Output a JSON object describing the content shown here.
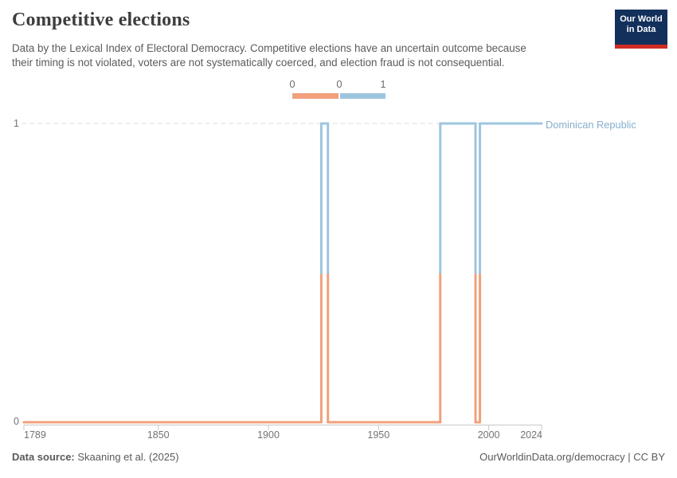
{
  "header": {
    "title": "Competitive elections",
    "subtitle_lines": [
      "Data by the Lexical Index of Electoral Democracy. Competitive elections have an uncertain outcome because",
      "their timing is not violated, voters are not systematically coerced, and election fraud is not consequential."
    ],
    "logo": {
      "line1": "Our World",
      "line2": "in Data"
    }
  },
  "legend": {
    "tick_labels": [
      "0",
      "0",
      "1"
    ],
    "bins": [
      {
        "value": "0",
        "color": "#f1a07c"
      },
      {
        "value": "1",
        "color": "#9ec5df"
      }
    ]
  },
  "chart_data": {
    "type": "line",
    "title": "Competitive elections",
    "entity_label": "Dominican Republic",
    "xlim": [
      1789,
      2024
    ],
    "ylim": [
      0,
      1
    ],
    "x_ticks": [
      1789,
      1850,
      1900,
      1950,
      2000,
      2024
    ],
    "y_ticks": [
      "0",
      "1"
    ],
    "grid": "dashed horizontal gridline at y=1",
    "legend_position": "top-center",
    "series": [
      {
        "name": "Dominican Republic",
        "step_style": "post",
        "steps": [
          {
            "from": 1789,
            "to": 1924,
            "value": 0
          },
          {
            "from": 1924,
            "to": 1927,
            "value": 1
          },
          {
            "from": 1927,
            "to": 1978,
            "value": 0
          },
          {
            "from": 1978,
            "to": 1994,
            "value": 1
          },
          {
            "from": 1994,
            "to": 1996,
            "value": 0
          },
          {
            "from": 1996,
            "to": 2024,
            "value": 1
          }
        ]
      }
    ],
    "value_colors": {
      "0": "#f1a07c",
      "1": "#9ec5df"
    },
    "entity_label_color": "#85afce",
    "grid_color": "#dcdcdc",
    "axis_color": "#c8c8c8"
  },
  "footer": {
    "source_label": "Data source:",
    "source_value": " Skaaning et al. (2025)",
    "license": "OurWorldinData.org/democracy | CC BY"
  }
}
